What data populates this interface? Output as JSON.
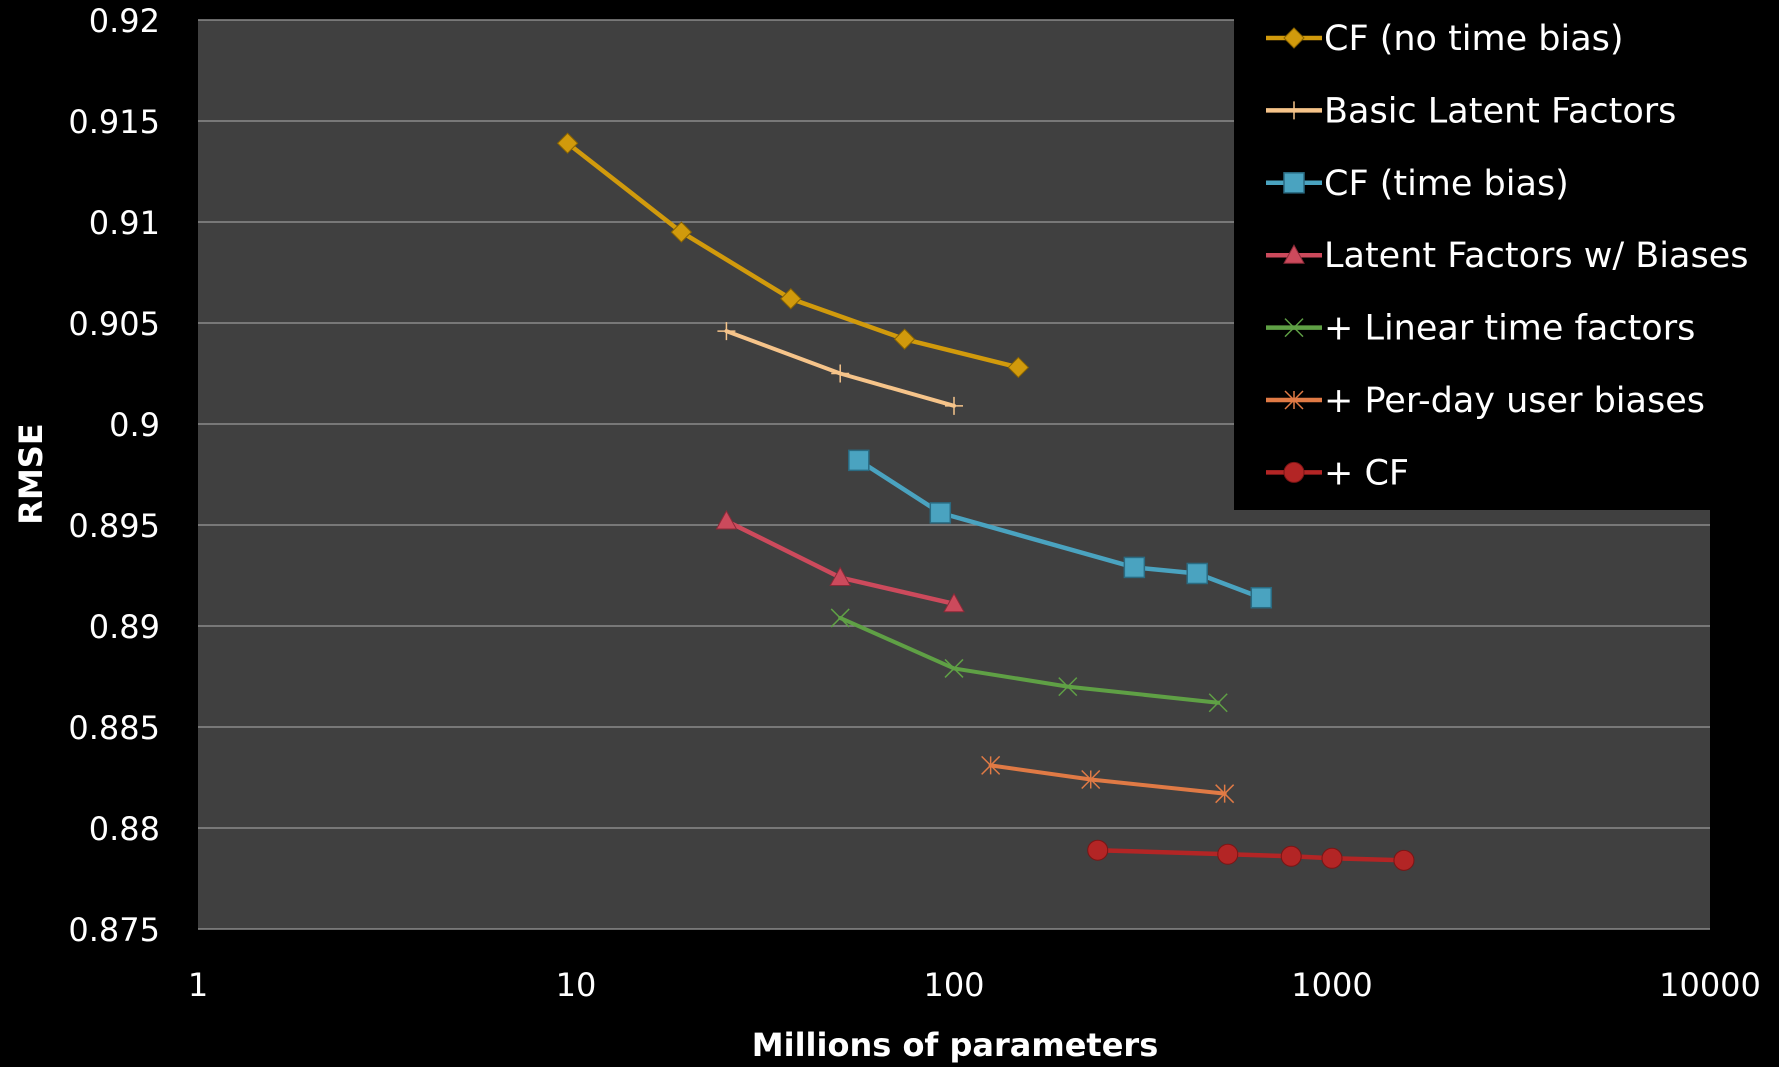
{
  "chart_data": {
    "type": "line",
    "title": "",
    "xlabel": "Millions of parameters",
    "ylabel": "RMSE",
    "x_scale": "log",
    "xlim": [
      1,
      10000
    ],
    "ylim": [
      0.875,
      0.92
    ],
    "x_ticks": [
      "1",
      "10",
      "100",
      "1000",
      "10000"
    ],
    "y_ticks": [
      "0.875",
      "0.88",
      "0.885",
      "0.89",
      "0.895",
      "0.9",
      "0.905",
      "0.91",
      "0.915",
      "0.92"
    ],
    "grid": "horizontal",
    "legend_position": "top-right",
    "colors": {
      "background": "#000000",
      "plot_area": "#404040",
      "gridline": "#8a8a8a",
      "text": "#ffffff"
    },
    "series": [
      {
        "name": "CF (no time bias)",
        "color": "#d19a0c",
        "marker": "diamond",
        "points": [
          [
            9.5,
            0.9139
          ],
          [
            19,
            0.9095
          ],
          [
            37,
            0.9062
          ],
          [
            74,
            0.9042
          ],
          [
            148,
            0.9028
          ]
        ]
      },
      {
        "name": "Basic Latent Factors",
        "color": "#f6c48a",
        "marker": "plus",
        "points": [
          [
            25,
            0.9046
          ],
          [
            50,
            0.9025
          ],
          [
            100,
            0.9009
          ]
        ]
      },
      {
        "name": "CF (time bias)",
        "color": "#4aa3c0",
        "marker": "square",
        "points": [
          [
            56,
            0.8982
          ],
          [
            92,
            0.8956
          ],
          [
            300,
            0.8929
          ],
          [
            440,
            0.8926
          ],
          [
            650,
            0.8914
          ]
        ]
      },
      {
        "name": "Latent Factors w/ Biases",
        "color": "#cc4a5c",
        "marker": "triangle",
        "points": [
          [
            25,
            0.8952
          ],
          [
            50,
            0.8924
          ],
          [
            100,
            0.8911
          ]
        ]
      },
      {
        "name": "+ Linear time factors",
        "color": "#5fa045",
        "marker": "x",
        "points": [
          [
            50,
            0.8904
          ],
          [
            100,
            0.8879
          ],
          [
            200,
            0.887
          ],
          [
            500,
            0.8862
          ]
        ]
      },
      {
        "name": "+ Per-day user biases",
        "color": "#e07a45",
        "marker": "star",
        "points": [
          [
            125,
            0.8831
          ],
          [
            230,
            0.8824
          ],
          [
            520,
            0.8817
          ]
        ]
      },
      {
        "name": "+ CF",
        "color": "#b32525",
        "marker": "circle",
        "points": [
          [
            240,
            0.8789
          ],
          [
            530,
            0.8787
          ],
          [
            780,
            0.8786
          ],
          [
            1000,
            0.8785
          ],
          [
            1550,
            0.8784
          ]
        ]
      }
    ]
  }
}
